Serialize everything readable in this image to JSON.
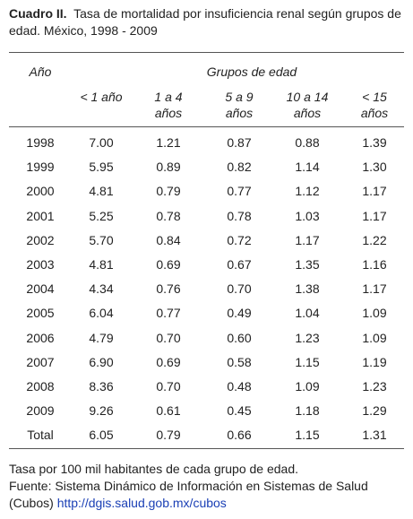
{
  "header": {
    "label": "Cuadro II.",
    "title": "Tasa de mortalidad por insuficiencia renal según grupos de edad. México, 1998 - 2009"
  },
  "table": {
    "year_header": "Año",
    "group_header": "Grupos de edad",
    "columns": [
      "< 1 año",
      "1 a 4 años",
      "5 a 9 años",
      "10 a 14 años",
      "< 15 años"
    ],
    "rows": [
      [
        "1998",
        "7.00",
        "1.21",
        "0.87",
        "0.88",
        "1.39"
      ],
      [
        "1999",
        "5.95",
        "0.89",
        "0.82",
        "1.14",
        "1.30"
      ],
      [
        "2000",
        "4.81",
        "0.79",
        "0.77",
        "1.12",
        "1.17"
      ],
      [
        "2001",
        "5.25",
        "0.78",
        "0.78",
        "1.03",
        "1.17"
      ],
      [
        "2002",
        "5.70",
        "0.84",
        "0.72",
        "1.17",
        "1.22"
      ],
      [
        "2003",
        "4.81",
        "0.69",
        "0.67",
        "1.35",
        "1.16"
      ],
      [
        "2004",
        "4.34",
        "0.76",
        "0.70",
        "1.38",
        "1.17"
      ],
      [
        "2005",
        "6.04",
        "0.77",
        "0.49",
        "1.04",
        "1.09"
      ],
      [
        "2006",
        "4.79",
        "0.70",
        "0.60",
        "1.23",
        "1.09"
      ],
      [
        "2007",
        "6.90",
        "0.69",
        "0.58",
        "1.15",
        "1.19"
      ],
      [
        "2008",
        "8.36",
        "0.70",
        "0.48",
        "1.09",
        "1.23"
      ],
      [
        "2009",
        "9.26",
        "0.61",
        "0.45",
        "1.18",
        "1.29"
      ],
      [
        "Total",
        "6.05",
        "0.79",
        "0.66",
        "1.15",
        "1.31"
      ]
    ]
  },
  "footer": {
    "note": "Tasa por 100 mil habitantes de cada grupo de edad.",
    "source": "Fuente: Sistema Dinámico de Información en Sistemas de Salud (Cubos)",
    "url": "http://dgis.salud.gob.mx/cubos"
  }
}
